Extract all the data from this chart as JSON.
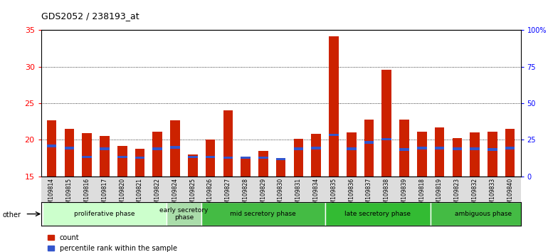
{
  "title": "GDS2052 / 238193_at",
  "samples": [
    "GSM109814",
    "GSM109815",
    "GSM109816",
    "GSM109817",
    "GSM109820",
    "GSM109821",
    "GSM109822",
    "GSM109824",
    "GSM109825",
    "GSM109826",
    "GSM109827",
    "GSM109828",
    "GSM109829",
    "GSM109830",
    "GSM109831",
    "GSM109834",
    "GSM109835",
    "GSM109836",
    "GSM109837",
    "GSM109838",
    "GSM109839",
    "GSM109818",
    "GSM109819",
    "GSM109823",
    "GSM109832",
    "GSM109833",
    "GSM109840"
  ],
  "count_values": [
    22.7,
    21.5,
    20.9,
    20.5,
    19.2,
    18.8,
    21.1,
    22.7,
    18.0,
    20.0,
    24.0,
    17.5,
    18.5,
    17.2,
    20.1,
    20.8,
    34.2,
    21.0,
    22.8,
    29.6,
    22.8,
    21.1,
    21.7,
    20.2,
    21.0,
    21.1,
    21.5
  ],
  "percentile_values": [
    19.0,
    18.7,
    17.5,
    18.6,
    17.5,
    17.4,
    18.6,
    18.8,
    17.5,
    17.5,
    17.4,
    17.4,
    17.4,
    17.2,
    18.6,
    18.7,
    20.5,
    18.6,
    19.5,
    19.9,
    18.5,
    18.7,
    18.7,
    18.6,
    18.6,
    18.5,
    18.7
  ],
  "phases": [
    {
      "label": "proliferative phase",
      "start": 0,
      "end": 7,
      "color": "#ccffcc"
    },
    {
      "label": "early secretory\nphase",
      "start": 7,
      "end": 9,
      "color": "#aaddaa"
    },
    {
      "label": "mid secretory phase",
      "start": 9,
      "end": 16,
      "color": "#44bb44"
    },
    {
      "label": "late secretory phase",
      "start": 16,
      "end": 22,
      "color": "#33bb33"
    },
    {
      "label": "ambiguous phase",
      "start": 22,
      "end": 28,
      "color": "#44bb44"
    }
  ],
  "ylim_left": [
    15,
    35
  ],
  "ylim_right": [
    0,
    100
  ],
  "yticks_left": [
    15,
    20,
    25,
    30,
    35
  ],
  "yticks_right": [
    0,
    25,
    50,
    75,
    100
  ],
  "ytick_right_labels": [
    "0",
    "25",
    "50",
    "75",
    "100%"
  ],
  "bar_color_red": "#cc2200",
  "bar_color_blue": "#3355cc",
  "bar_width": 0.55,
  "baseline": 15,
  "blue_bar_height": 0.35
}
